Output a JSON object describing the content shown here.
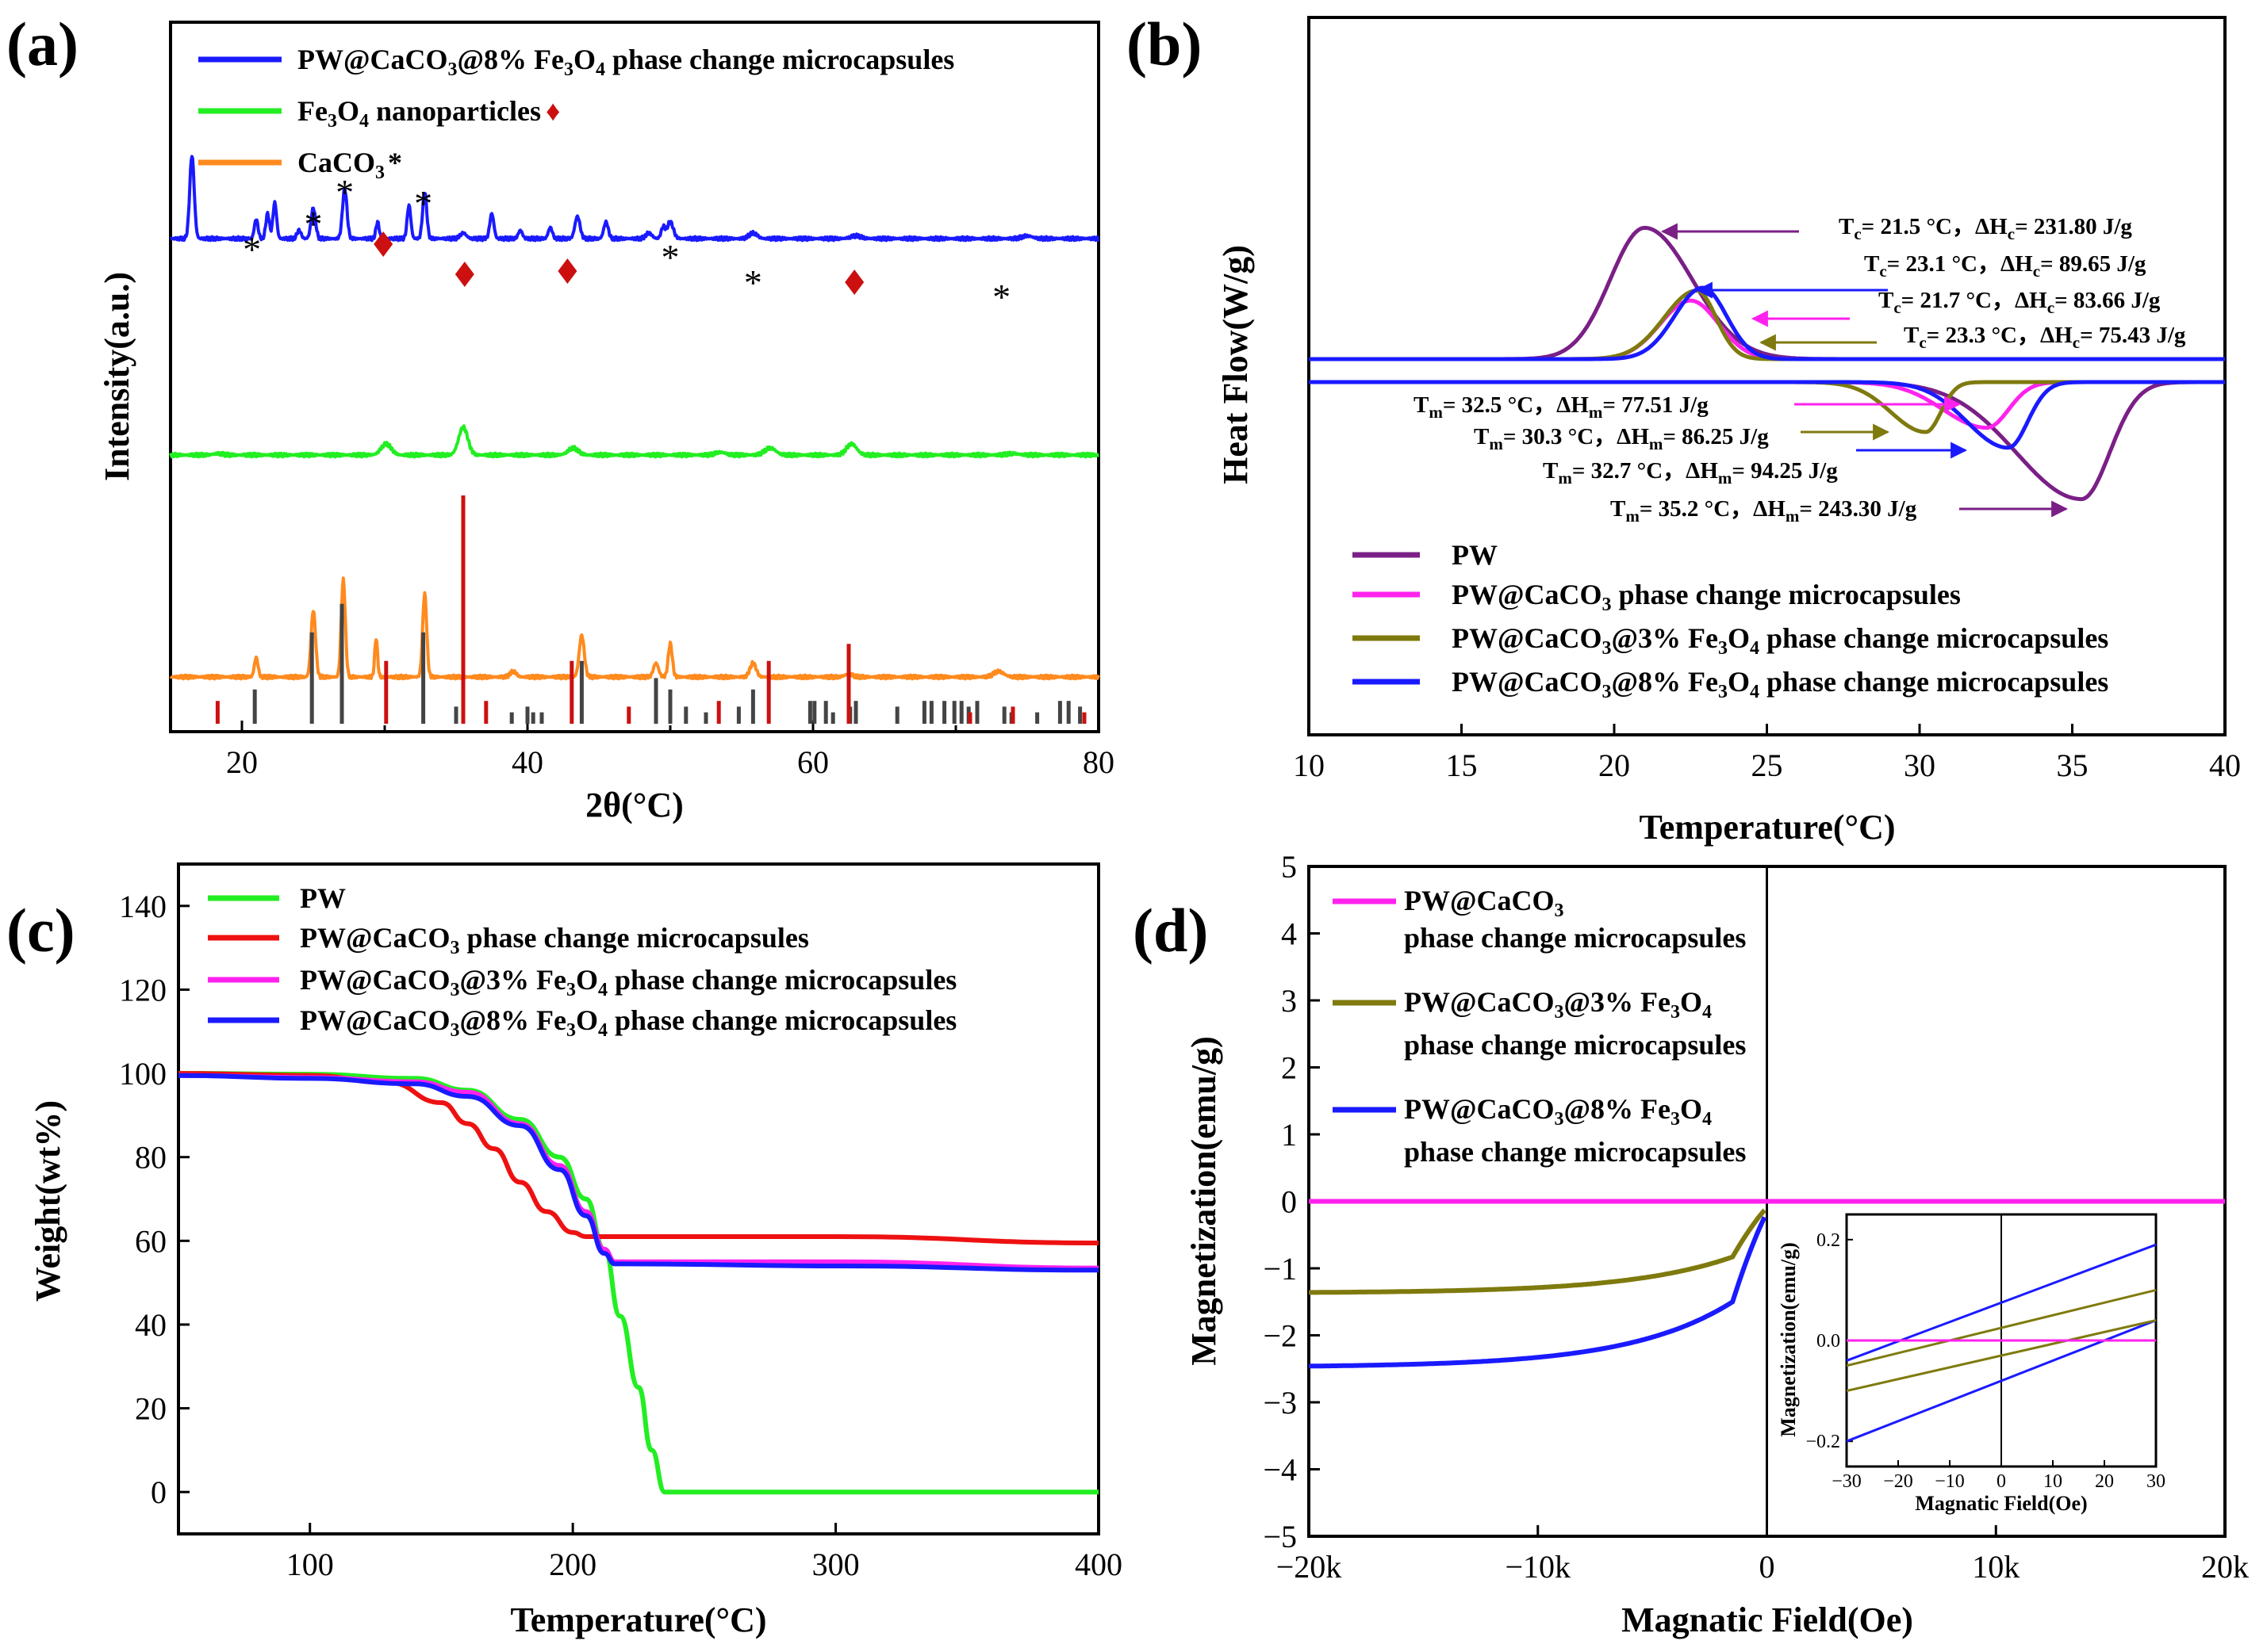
{
  "figure": {
    "panel_labels": [
      "(a)",
      "(b)",
      "(c)",
      "(d)"
    ]
  },
  "chart_data": [
    {
      "panel": "(a)",
      "type": "line",
      "title": "",
      "xlabel": "2θ(°C)",
      "ylabel": "Intensity(a.u.)",
      "xlim": [
        15,
        80
      ],
      "xticks": [
        20,
        40,
        60,
        80
      ],
      "colors": {
        "blue": "#1a1aff",
        "green": "#22ee22",
        "orange": "#ff8a1e",
        "red": "#cc1010",
        "gray": "#444444"
      },
      "legend": [
        {
          "name": "PW@CaCO3@8% Fe3O4 phase change microcapsules",
          "color": "#1a1aff"
        },
        {
          "name": "Fe3O4 nanoparticles",
          "color": "#22ee22",
          "marker": "♦"
        },
        {
          "name": "CaCO3",
          "color": "#ff8a1e",
          "marker": "*"
        }
      ],
      "series": [
        {
          "name": "PW@CaCO3@8% Fe3O4 phase change microcapsules",
          "color": "#1a1aff",
          "baseline": 0.78,
          "peaks": [
            [
              16.5,
              0.3,
              0.22
            ],
            [
              21.0,
              0.07,
              0.18
            ],
            [
              21.8,
              0.09,
              0.18
            ],
            [
              22.3,
              0.13,
              0.18
            ],
            [
              24.0,
              0.03,
              0.2
            ],
            [
              25.0,
              0.11,
              0.22
            ],
            [
              27.2,
              0.18,
              0.22
            ],
            [
              29.5,
              0.06,
              0.16
            ],
            [
              31.7,
              0.12,
              0.18
            ],
            [
              32.8,
              0.17,
              0.2
            ],
            [
              35.5,
              0.02,
              0.3
            ],
            [
              37.5,
              0.09,
              0.2
            ],
            [
              39.5,
              0.03,
              0.2
            ],
            [
              41.6,
              0.04,
              0.2
            ],
            [
              43.5,
              0.08,
              0.25
            ],
            [
              45.5,
              0.06,
              0.22
            ],
            [
              48.5,
              0.02,
              0.3
            ],
            [
              49.5,
              0.04,
              0.2
            ],
            [
              50.0,
              0.06,
              0.3
            ],
            [
              55.8,
              0.02,
              0.4
            ],
            [
              63.0,
              0.01,
              0.5
            ],
            [
              75.0,
              0.01,
              0.5
            ]
          ]
        },
        {
          "name": "Fe3O4 nanoparticles",
          "color": "#22ee22",
          "baseline": 1.56,
          "peaks": [
            [
              18.3,
              0.005,
              0.5
            ],
            [
              30.1,
              0.04,
              0.5
            ],
            [
              35.5,
              0.1,
              0.45
            ],
            [
              43.2,
              0.025,
              0.5
            ],
            [
              53.5,
              0.01,
              0.5
            ],
            [
              57.0,
              0.025,
              0.55
            ],
            [
              62.7,
              0.04,
              0.5
            ],
            [
              74.0,
              0.005,
              0.6
            ]
          ]
        },
        {
          "name": "CaCO3",
          "color": "#ff8a1e",
          "baseline": 2.36,
          "peaks": [
            [
              21.0,
              0.07,
              0.18
            ],
            [
              25.0,
              0.24,
              0.22
            ],
            [
              27.1,
              0.35,
              0.2
            ],
            [
              29.4,
              0.14,
              0.14
            ],
            [
              32.8,
              0.3,
              0.2
            ],
            [
              39.0,
              0.02,
              0.3
            ],
            [
              43.8,
              0.15,
              0.25
            ],
            [
              49.0,
              0.05,
              0.25
            ],
            [
              50.0,
              0.12,
              0.2
            ],
            [
              55.8,
              0.05,
              0.3
            ],
            [
              62.5,
              0.01,
              0.4
            ],
            [
              73.0,
              0.02,
              0.5
            ]
          ]
        }
      ],
      "reference_lines": {
        "CaCO3": [
          [
            20.9,
            0.06
          ],
          [
            24.9,
            0.16
          ],
          [
            27.0,
            0.21
          ],
          [
            32.7,
            0.16
          ],
          [
            38.9,
            0.02
          ],
          [
            40.0,
            0.03
          ],
          [
            41.0,
            0.02
          ],
          [
            43.8,
            0.11
          ],
          [
            49.0,
            0.08
          ],
          [
            50.0,
            0.06
          ],
          [
            51.1,
            0.03
          ],
          [
            52.5,
            0.02
          ],
          [
            54.8,
            0.03
          ],
          [
            55.8,
            0.06
          ],
          [
            59.8,
            0.04
          ],
          [
            60.1,
            0.04
          ],
          [
            60.9,
            0.04
          ],
          [
            61.4,
            0.02
          ],
          [
            62.6,
            0.03
          ],
          [
            63.0,
            0.04
          ],
          [
            65.9,
            0.03
          ],
          [
            67.8,
            0.04
          ],
          [
            68.3,
            0.04
          ],
          [
            69.2,
            0.04
          ],
          [
            69.9,
            0.04
          ],
          [
            70.4,
            0.04
          ],
          [
            70.9,
            0.03
          ],
          [
            71.5,
            0.04
          ],
          [
            73.4,
            0.03
          ],
          [
            73.9,
            0.02
          ],
          [
            75.7,
            0.02
          ],
          [
            77.3,
            0.04
          ],
          [
            77.9,
            0.04
          ],
          [
            78.7,
            0.03
          ],
          [
            40.4,
            0.02
          ],
          [
            35.0,
            0.03
          ]
        ],
        "Fe3O4": [
          [
            18.3,
            0.04
          ],
          [
            30.1,
            0.11
          ],
          [
            35.5,
            0.4
          ],
          [
            37.1,
            0.04
          ],
          [
            43.1,
            0.11
          ],
          [
            47.1,
            0.03
          ],
          [
            53.4,
            0.04
          ],
          [
            56.9,
            0.11
          ],
          [
            62.5,
            0.14
          ],
          [
            71.0,
            0.02
          ],
          [
            74.0,
            0.03
          ],
          [
            79.0,
            0.02
          ]
        ]
      },
      "peak_markers": {
        "asterisk_x": [
          20.7,
          25.0,
          27.2,
          32.7,
          50.0,
          55.8,
          73.2
        ],
        "diamond_x": [
          29.9,
          35.6,
          42.8,
          62.9
        ]
      }
    },
    {
      "panel": "(b)",
      "type": "line",
      "xlabel": "Temperature(°C)",
      "ylabel": "Heat Flow(W/g)",
      "xlim": [
        10,
        40
      ],
      "xticks": [
        10,
        15,
        20,
        25,
        30,
        35,
        40
      ],
      "legend": [
        {
          "name": "PW",
          "color": "#7a1f86"
        },
        {
          "name": "PW@CaCO3 phase change microcapsules",
          "color": "#ff22ee"
        },
        {
          "name": "PW@CaCO3@3% Fe3O4 phase change microcapsules",
          "color": "#7f7a0e"
        },
        {
          "name": "PW@CaCO3@8% Fe3O4 phase change microcapsules",
          "color": "#1a1aff"
        }
      ],
      "series": [
        {
          "name": "PW",
          "color": "#7a1f86",
          "cool_peak_T": 21.0,
          "cool_peak": 0.92,
          "heat_peak_T": 35.3,
          "heat_peak": -0.82
        },
        {
          "name": "PW@CaCO3",
          "color": "#ff22ee",
          "cool_peak_T": 22.5,
          "cool_peak": 0.41,
          "heat_peak_T": 32.2,
          "heat_peak": -0.32
        },
        {
          "name": "PW@CaCO3@3% Fe3O4",
          "color": "#7f7a0e",
          "cool_peak_T": 22.7,
          "cool_peak": 0.48,
          "heat_peak_T": 30.2,
          "heat_peak": -0.35
        },
        {
          "name": "PW@CaCO3@8% Fe3O4",
          "color": "#1a1aff",
          "cool_peak_T": 22.9,
          "cool_peak": 0.5,
          "heat_peak_T": 32.9,
          "heat_peak": -0.46
        }
      ],
      "annotations_cooling": [
        {
          "Tc": "21.5",
          "Hc": "231.80",
          "color": "#7a1f86"
        },
        {
          "Tc": "23.1",
          "Hc": "89.65",
          "color": "#1a1aff"
        },
        {
          "Tc": "21.7",
          "Hc": "83.66",
          "color": "#ff22ee"
        },
        {
          "Tc": "23.3",
          "Hc": "75.43",
          "color": "#7f7a0e"
        }
      ],
      "annotations_heating": [
        {
          "Tm": "32.5",
          "Hm": "77.51",
          "color": "#ff22ee"
        },
        {
          "Tm": "30.3",
          "Hm": "86.25",
          "color": "#7f7a0e"
        },
        {
          "Tm": "32.7",
          "Hm": "94.25",
          "color": "#1a1aff"
        },
        {
          "Tm": "35.2",
          "Hm": "243.30",
          "color": "#7a1f86"
        }
      ]
    },
    {
      "panel": "(c)",
      "type": "line",
      "xlabel": "Temperature(°C)",
      "ylabel": "Weight(wt%)",
      "xlim": [
        50,
        400
      ],
      "ylim": [
        -10,
        150
      ],
      "xticks": [
        100,
        200,
        300,
        400
      ],
      "yticks": [
        0,
        20,
        40,
        60,
        80,
        100,
        120,
        140
      ],
      "legend": [
        {
          "name": "PW",
          "color": "#22ee22"
        },
        {
          "name": "PW@CaCO3 phase change microcapsules",
          "color": "#ee1111"
        },
        {
          "name": "PW@CaCO3@3% Fe3O4 phase change microcapsules",
          "color": "#ff22ee"
        },
        {
          "name": "PW@CaCO3@8% Fe3O4 phase change microcapsules",
          "color": "#1a1aff"
        }
      ],
      "series": [
        {
          "name": "PW",
          "color": "#22ee22",
          "x": [
            50,
            100,
            140,
            160,
            180,
            195,
            205,
            212,
            218,
            225,
            230,
            235,
            240,
            300,
            400
          ],
          "y": [
            100,
            99.8,
            98.8,
            96,
            89,
            80,
            70,
            58,
            42,
            25,
            10,
            0,
            0,
            0,
            0
          ]
        },
        {
          "name": "PW@CaCO3",
          "color": "#ee1111",
          "x": [
            50,
            100,
            130,
            150,
            160,
            170,
            180,
            190,
            200,
            205,
            210,
            220,
            300,
            400
          ],
          "y": [
            100,
            99.5,
            97.8,
            93,
            88,
            82,
            74,
            67,
            62,
            61,
            61,
            61,
            61,
            59.5
          ]
        },
        {
          "name": "PW@CaCO3@3% Fe3O4",
          "color": "#ff22ee",
          "x": [
            50,
            100,
            140,
            160,
            180,
            195,
            205,
            212,
            216,
            220,
            300,
            400
          ],
          "y": [
            99.5,
            99,
            98,
            95.5,
            88,
            78,
            67,
            58,
            55,
            55,
            55,
            53.5
          ]
        },
        {
          "name": "PW@CaCO3@8% Fe3O4",
          "color": "#1a1aff",
          "x": [
            50,
            100,
            140,
            160,
            180,
            195,
            205,
            212,
            216,
            220,
            300,
            400
          ],
          "y": [
            99.5,
            98.8,
            97.5,
            94.5,
            87.5,
            77,
            66,
            57,
            54.5,
            54.5,
            54,
            53
          ]
        }
      ]
    },
    {
      "panel": "(d)",
      "type": "line",
      "xlabel": "Magnatic Field(Oe)",
      "ylabel": "Magnetization(emu/g)",
      "xlim": [
        -20000,
        20000
      ],
      "ylim": [
        -5,
        5
      ],
      "xticks": [
        "−20k",
        "−10k",
        "0",
        "10k",
        "20k"
      ],
      "yticks": [
        "−5",
        "−4",
        "−3",
        "−2",
        "−1",
        "0",
        "1",
        "2",
        "3",
        "4",
        "5"
      ],
      "legend": [
        {
          "name": "PW@CaCO3",
          "line2": "phase change microcapsules",
          "color": "#ff22ee"
        },
        {
          "name": "PW@CaCO3@3% Fe3O4",
          "line2": "phase change microcapsules",
          "color": "#7f7a0e"
        },
        {
          "name": "PW@CaCO3@8% Fe3O4",
          "line2": "phase change microcapsules",
          "color": "#1a1aff"
        }
      ],
      "series": [
        {
          "name": "PW@CaCO3",
          "color": "#ff22ee",
          "Ms": 0
        },
        {
          "name": "PW@CaCO3@3% Fe3O4",
          "color": "#7f7a0e",
          "Ms": 1.36
        },
        {
          "name": "PW@CaCO3@8% Fe3O4",
          "color": "#1a1aff",
          "Ms": 2.46
        }
      ],
      "inset": {
        "xlabel": "Magnatic Field(Oe)",
        "ylabel": "Magnetization(emu/g)",
        "xlim": [
          -30,
          30
        ],
        "ylim": [
          -0.25,
          0.25
        ],
        "xticks": [
          "−30",
          "−20",
          "−10",
          "0",
          "10",
          "20",
          "30"
        ],
        "yticks": [
          "−0.2",
          "0.0",
          "0.2"
        ],
        "loops": [
          {
            "color": "#1a1aff",
            "upper": [
              [
                -30,
                -0.04
              ],
              [
                30,
                0.19
              ]
            ],
            "lower": [
              [
                -30,
                -0.2
              ],
              [
                30,
                0.04
              ]
            ]
          },
          {
            "color": "#7f7a0e",
            "upper": [
              [
                -30,
                -0.05
              ],
              [
                30,
                0.1
              ]
            ],
            "lower": [
              [
                -30,
                -0.1
              ],
              [
                30,
                0.04
              ]
            ]
          },
          {
            "color": "#ff22ee",
            "upper": [
              [
                -30,
                0
              ],
              [
                30,
                0
              ]
            ],
            "lower": [
              [
                -30,
                0
              ],
              [
                30,
                0
              ]
            ]
          }
        ]
      }
    }
  ]
}
